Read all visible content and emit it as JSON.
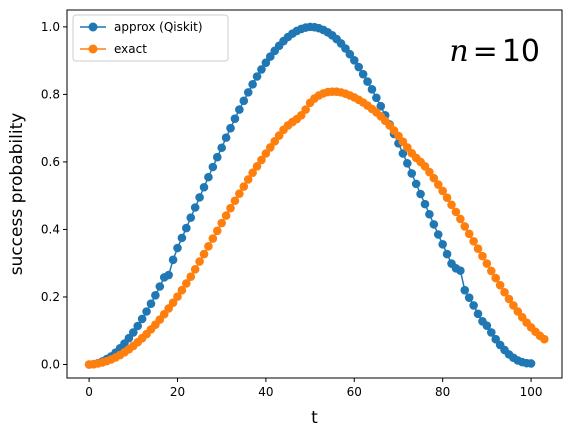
{
  "chart_data": {
    "type": "line",
    "xlabel": "t",
    "ylabel": "success probability",
    "xlim": [
      -5,
      107
    ],
    "ylim": [
      -0.04,
      1.05
    ],
    "x_ticks": [
      0,
      20,
      40,
      60,
      80,
      100
    ],
    "y_ticks": [
      0.0,
      0.2,
      0.4,
      0.6,
      0.8,
      1.0
    ],
    "y_tick_labels": [
      "0.0",
      "0.2",
      "0.4",
      "0.6",
      "0.8",
      "1.0"
    ],
    "legend_position": "top-left",
    "annotation": {
      "text_prefix": "n",
      "text_eq": "=",
      "text_value": "10"
    },
    "series": [
      {
        "name": "approx (Qiskit)",
        "color": "#1f77b4",
        "x_start": 0,
        "x_step": 1,
        "values": [
          0.0,
          0.001,
          0.004,
          0.009,
          0.016,
          0.024,
          0.035,
          0.048,
          0.062,
          0.078,
          0.095,
          0.114,
          0.135,
          0.157,
          0.18,
          0.205,
          0.231,
          0.258,
          0.265,
          0.31,
          0.345,
          0.375,
          0.404,
          0.435,
          0.465,
          0.495,
          0.525,
          0.555,
          0.585,
          0.614,
          0.642,
          0.672,
          0.7,
          0.728,
          0.755,
          0.781,
          0.806,
          0.83,
          0.853,
          0.874,
          0.894,
          0.912,
          0.929,
          0.944,
          0.958,
          0.97,
          0.98,
          0.988,
          0.994,
          0.998,
          1.0,
          0.999,
          0.996,
          0.991,
          0.984,
          0.975,
          0.964,
          0.951,
          0.936,
          0.919,
          0.901,
          0.881,
          0.86,
          0.838,
          0.815,
          0.79,
          0.765,
          0.738,
          0.711,
          0.683,
          0.655,
          0.625,
          0.596,
          0.566,
          0.535,
          0.505,
          0.475,
          0.445,
          0.415,
          0.385,
          0.356,
          0.327,
          0.299,
          0.285,
          0.278,
          0.22,
          0.198,
          0.175,
          0.15,
          0.128,
          0.115,
          0.095,
          0.075,
          0.058,
          0.043,
          0.03,
          0.02,
          0.012,
          0.007,
          0.004,
          0.003
        ]
      },
      {
        "name": "exact",
        "color": "#ff7f0e",
        "x_start": 0,
        "x_step": 1,
        "values": [
          0.0,
          0.001,
          0.003,
          0.006,
          0.01,
          0.015,
          0.021,
          0.028,
          0.036,
          0.045,
          0.055,
          0.066,
          0.078,
          0.09,
          0.104,
          0.118,
          0.133,
          0.149,
          0.166,
          0.183,
          0.201,
          0.22,
          0.24,
          0.26,
          0.282,
          0.305,
          0.327,
          0.35,
          0.373,
          0.396,
          0.419,
          0.441,
          0.463,
          0.485,
          0.506,
          0.527,
          0.548,
          0.568,
          0.587,
          0.606,
          0.625,
          0.643,
          0.661,
          0.678,
          0.695,
          0.708,
          0.718,
          0.727,
          0.738,
          0.755,
          0.775,
          0.788,
          0.797,
          0.803,
          0.807,
          0.808,
          0.808,
          0.806,
          0.802,
          0.797,
          0.791,
          0.784,
          0.776,
          0.767,
          0.757,
          0.747,
          0.735,
          0.722,
          0.708,
          0.693,
          0.677,
          0.66,
          0.643,
          0.626,
          0.612,
          0.6,
          0.587,
          0.57,
          0.552,
          0.533,
          0.514,
          0.494,
          0.473,
          0.452,
          0.431,
          0.409,
          0.387,
          0.365,
          0.343,
          0.321,
          0.299,
          0.277,
          0.256,
          0.235,
          0.214,
          0.194,
          0.175,
          0.157,
          0.14,
          0.124,
          0.11,
          0.097,
          0.085,
          0.075
        ]
      }
    ]
  }
}
